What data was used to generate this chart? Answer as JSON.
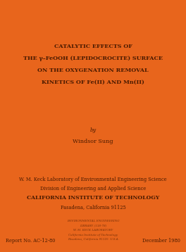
{
  "bg_color": "#E8651C",
  "text_color": "#4A1A00",
  "title_lines": [
    "CATALYTIC EFFECTS OF",
    "THE γ–FeOOH (LEPIDOCROCITE) SURFACE",
    "ON THE OXYGENATION REMOVAL",
    "KINETICS OF Fe(II) AND Mn(II)"
  ],
  "by_text": "by",
  "author": "Windsor Sung",
  "institution_lines": [
    "W. M. Keck Laboratory of Environmental Engineering Science",
    "Division of Engineering and Applied Science",
    "CALIFORNIA INSTITUTE OF TECHNOLOGY",
    "Pasadena, California 91125"
  ],
  "report_no": "Report No. AC-12-80",
  "date": "December 1980",
  "stamp_lines": [
    "ENVIRONMENTAL ENGINEERING",
    "LIBRARY (138-78)",
    "W. M. KECK LABORATORY",
    "California Institute of Technology",
    "Pasadena, California 91125  U.S.A."
  ],
  "figsize": [
    2.64,
    3.58
  ],
  "dpi": 100
}
